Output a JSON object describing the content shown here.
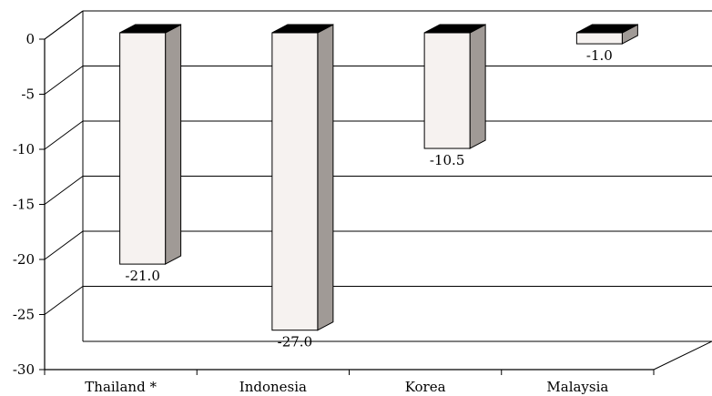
{
  "chart_data": {
    "type": "bar",
    "categories": [
      "Thailand *",
      "Indonesia",
      "Korea",
      "Malaysia"
    ],
    "values": [
      -21.0,
      -27.0,
      -10.5,
      -1.0
    ],
    "data_labels": [
      "-21.0",
      "-27.0",
      "-10.5",
      "-1.0"
    ],
    "title": "",
    "xlabel": "",
    "ylabel": "",
    "ylim": [
      -30,
      0
    ],
    "yticks": [
      0,
      -5,
      -10,
      -15,
      -20,
      -25,
      -30
    ],
    "ytick_labels": [
      "0",
      "-5",
      "-10",
      "-15",
      "-20",
      "-25",
      "-30"
    ],
    "grid": true,
    "style": "3d",
    "colors": {
      "bar_front": "#f6f2f0",
      "bar_side": "#a09a96",
      "bar_top": "#000000",
      "grid": "#000000"
    }
  }
}
